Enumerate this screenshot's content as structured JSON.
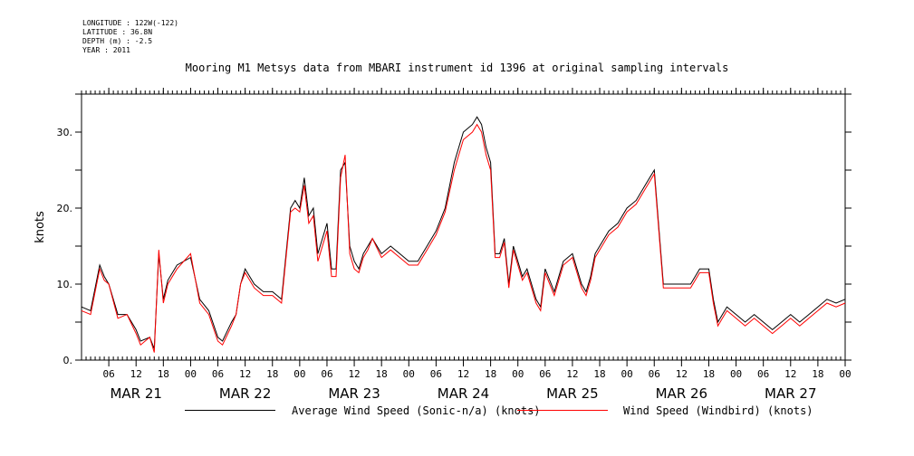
{
  "header": {
    "longitude": "LONGITUDE : 122W(-122)",
    "latitude": "LATITUDE : 36.8N",
    "depth": "DEPTH (m) : -2.5",
    "year": "YEAR : 2011"
  },
  "chart_data": {
    "type": "line",
    "title": "Mooring M1 Metsys data from MBARI instrument id 1396 at original sampling intervals",
    "xlabel": "",
    "ylabel": "knots",
    "xlim_hours": [
      0,
      168
    ],
    "ylim": [
      0,
      35
    ],
    "yticks": [
      0,
      10,
      20,
      30
    ],
    "ytick_labels": [
      "0.",
      "10.",
      "20.",
      "30."
    ],
    "xtick_hour_labels": [
      "06",
      "12",
      "18",
      "00",
      "06",
      "12",
      "18",
      "00",
      "06",
      "12",
      "18",
      "00",
      "06",
      "12",
      "18",
      "00",
      "06",
      "12",
      "18",
      "00",
      "06",
      "12",
      "18",
      "00",
      "06",
      "12",
      "18",
      "00"
    ],
    "day_labels": [
      "MAR 21",
      "MAR 22",
      "MAR 23",
      "MAR 24",
      "MAR 25",
      "MAR 26",
      "MAR 27"
    ],
    "grid": false,
    "legend_position": "bottom",
    "series": [
      {
        "name": "Average Wind Speed (Sonic-n/a) (knots)",
        "color": "#000000",
        "x": [
          0,
          2,
          4,
          5,
          6,
          8,
          10,
          12,
          13,
          15,
          16,
          17,
          18,
          19,
          21,
          24,
          26,
          28,
          30,
          31,
          33,
          34,
          35,
          36,
          38,
          40,
          42,
          44,
          46,
          47,
          48,
          49,
          50,
          51,
          52,
          54,
          55,
          56,
          57,
          58,
          59,
          60,
          61,
          62,
          63,
          64,
          66,
          68,
          70,
          72,
          74,
          76,
          78,
          80,
          82,
          84,
          86,
          87,
          88,
          89,
          90,
          91,
          92,
          93,
          94,
          95,
          96,
          97,
          98,
          99,
          100,
          101,
          102,
          104,
          106,
          108,
          110,
          111,
          112,
          113,
          114,
          116,
          118,
          120,
          122,
          124,
          126,
          128,
          130,
          132,
          134,
          136,
          138,
          139,
          140,
          141,
          142,
          144,
          146,
          148,
          150,
          152,
          154,
          156,
          158,
          160,
          162,
          164,
          166,
          168
        ],
        "y": [
          7,
          6.5,
          12.5,
          11,
          10,
          6,
          6,
          4,
          2.5,
          3,
          1.5,
          14,
          8,
          10.5,
          12.5,
          13.5,
          8,
          6.5,
          3,
          2.5,
          5,
          6,
          10,
          12,
          10,
          9,
          9,
          8,
          20,
          21,
          20,
          24,
          19,
          20,
          14,
          18,
          12,
          12,
          25,
          26,
          15,
          13,
          12,
          14,
          15,
          16,
          14,
          15,
          14,
          13,
          13,
          15,
          17,
          20,
          26,
          30,
          31,
          32,
          31,
          28,
          26,
          14,
          14,
          16,
          10,
          15,
          13,
          11,
          12,
          10,
          8,
          7,
          12,
          9,
          13,
          14,
          10,
          9,
          11,
          14,
          15,
          17,
          18,
          20,
          21,
          23,
          25,
          10,
          10,
          10,
          10,
          12,
          12,
          8,
          5,
          6,
          7,
          6,
          5,
          6,
          5,
          4,
          5,
          6,
          5,
          6,
          7,
          8,
          7.5,
          8
        ]
      },
      {
        "name": "Wind Speed (Windbird) (knots)",
        "color": "#ff0000",
        "x": [
          0,
          2,
          4,
          5,
          6,
          8,
          10,
          12,
          13,
          15,
          16,
          17,
          18,
          19,
          21,
          24,
          26,
          28,
          30,
          31,
          33,
          34,
          35,
          36,
          38,
          40,
          42,
          44,
          46,
          47,
          48,
          49,
          50,
          51,
          52,
          54,
          55,
          56,
          57,
          58,
          59,
          60,
          61,
          62,
          63,
          64,
          66,
          68,
          70,
          72,
          74,
          76,
          78,
          80,
          82,
          84,
          86,
          87,
          88,
          89,
          90,
          91,
          92,
          93,
          94,
          95,
          96,
          97,
          98,
          99,
          100,
          101,
          102,
          104,
          106,
          108,
          110,
          111,
          112,
          113,
          114,
          116,
          118,
          120,
          122,
          124,
          126,
          128,
          130,
          132,
          134,
          136,
          138,
          139,
          140,
          141,
          142,
          144,
          146,
          148,
          150,
          152,
          154,
          156,
          158,
          160,
          162,
          164,
          166,
          168
        ],
        "y": [
          6.5,
          6,
          12,
          10.5,
          10,
          5.5,
          6,
          3.5,
          2,
          3,
          1,
          14.5,
          7.5,
          10,
          12,
          14,
          7.5,
          6,
          2.5,
          2,
          4.5,
          6,
          10,
          11.5,
          9.5,
          8.5,
          8.5,
          7.5,
          19.5,
          20,
          19.5,
          23,
          18,
          19,
          13,
          17,
          11,
          11,
          24,
          27,
          14,
          12,
          11.5,
          13.5,
          14.5,
          16,
          13.5,
          14.5,
          13.5,
          12.5,
          12.5,
          14.5,
          16.5,
          19.5,
          25,
          29,
          30,
          31,
          30,
          27,
          25,
          13.5,
          13.5,
          15.5,
          9.5,
          14.5,
          12.5,
          10.5,
          11.5,
          9.5,
          7.5,
          6.5,
          11.5,
          8.5,
          12.5,
          13.5,
          9.5,
          8.5,
          10.5,
          13.5,
          14.5,
          16.5,
          17.5,
          19.5,
          20.5,
          22.5,
          24.5,
          9.5,
          9.5,
          9.5,
          9.5,
          11.5,
          11.5,
          7.5,
          4.5,
          5.5,
          6.5,
          5.5,
          4.5,
          5.5,
          4.5,
          3.5,
          4.5,
          5.5,
          4.5,
          5.5,
          6.5,
          7.5,
          7,
          7.5
        ]
      }
    ]
  }
}
